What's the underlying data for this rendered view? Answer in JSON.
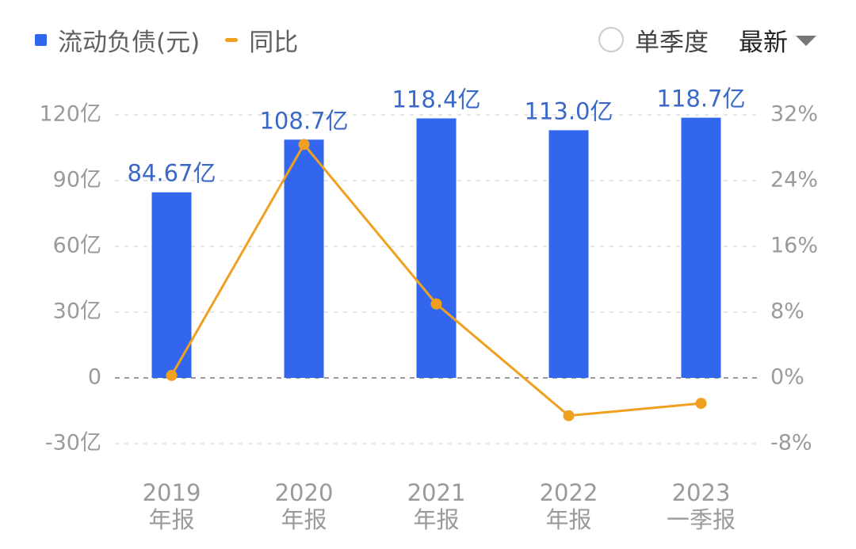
{
  "legend": {
    "bar_label": "流动负债(元)",
    "line_label": "同比"
  },
  "controls": {
    "quarter_label": "单季度",
    "period_label": "最新"
  },
  "colors": {
    "bar": "#3366ee",
    "line": "#f0a020",
    "value_label": "#3a68c8",
    "axis_text": "#9a9a9a"
  },
  "icons": {
    "radio": "radio-circle-icon",
    "dropdown": "caret-down-icon"
  },
  "chart_data": {
    "type": "bar",
    "categories": [
      [
        "2019",
        "年报"
      ],
      [
        "2020",
        "年报"
      ],
      [
        "2021",
        "年报"
      ],
      [
        "2022",
        "年报"
      ],
      [
        "2023",
        "一季报"
      ]
    ],
    "series": [
      {
        "name": "流动负债(元)",
        "type": "bar",
        "axis": "left",
        "values": [
          84.67,
          108.7,
          118.4,
          113.0,
          118.7
        ],
        "labels": [
          "84.67亿",
          "108.7亿",
          "118.4亿",
          "113.0亿",
          "118.7亿"
        ]
      },
      {
        "name": "同比",
        "type": "line",
        "axis": "right",
        "values": [
          0.3,
          28.4,
          9.0,
          -4.6,
          -3.1
        ]
      }
    ],
    "y_left": {
      "ticks": [
        -30,
        0,
        30,
        60,
        90,
        120
      ],
      "tick_labels": [
        "-30亿",
        "0",
        "30亿",
        "60亿",
        "90亿",
        "120亿"
      ],
      "range": [
        -30,
        120
      ]
    },
    "y_right": {
      "ticks": [
        -8,
        0,
        8,
        16,
        24,
        32
      ],
      "tick_labels": [
        "-8%",
        "0%",
        "8%",
        "16%",
        "24%",
        "32%"
      ],
      "range": [
        -8,
        32
      ]
    },
    "grid": true,
    "legend_position": "top-left"
  }
}
